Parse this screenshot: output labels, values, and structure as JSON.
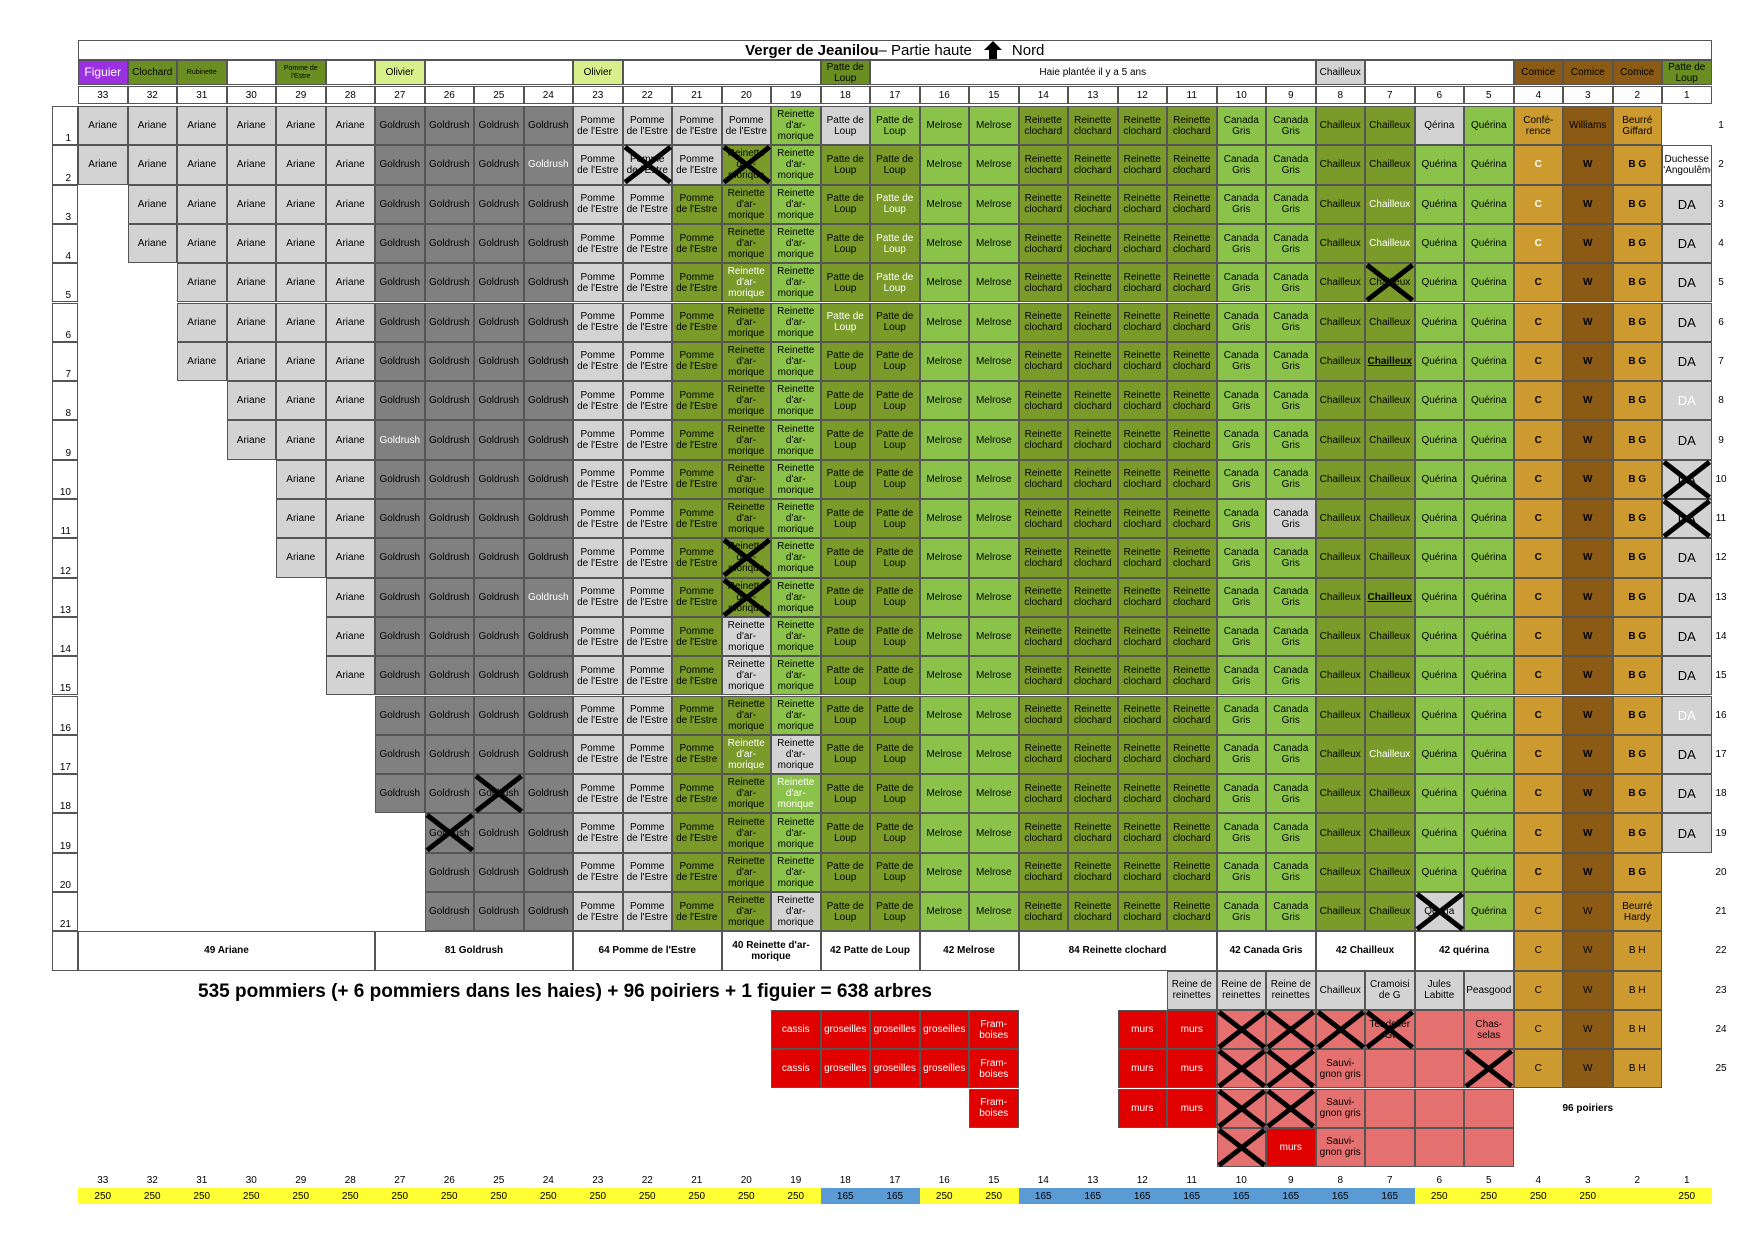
{
  "title": {
    "main": "Verger de Jeanilou",
    "sub": "– Partie haute",
    "north": "Nord",
    "north_icon": "north-arrow-icon"
  },
  "summary": "535 pommiers (+ 6 pommiers dans les haies)  + 96 poiriers + 1 figuier = 638 arbres",
  "colors": {
    "figuier": "#9b30e0",
    "olive": "#6b8e23",
    "lightolive": "#d7f08c",
    "grey": "#d3d3d3",
    "darkgrey": "#808080",
    "green": "#8bc34a",
    "olivegreen": "#7a9a2a",
    "gold": "#cc9a2e",
    "brown": "#8b5a14",
    "red": "#e00000",
    "pink": "#e47070",
    "yellow": "#ffff33",
    "blue": "#5b9bd5"
  },
  "col_numbers": [
    "33",
    "32",
    "31",
    "30",
    "29",
    "28",
    "27",
    "26",
    "25",
    "24",
    "23",
    "22",
    "21",
    "20",
    "19",
    "18",
    "17",
    "16",
    "15",
    "14",
    "13",
    "12",
    "11",
    "10",
    "9",
    "8",
    "7",
    "6",
    "5",
    "4",
    "3",
    "2",
    "1"
  ],
  "row_numbers": [
    "1",
    "2",
    "3",
    "4",
    "5",
    "6",
    "7",
    "8",
    "9",
    "10",
    "11",
    "12",
    "13",
    "14",
    "15",
    "16",
    "17",
    "18",
    "19",
    "20",
    "21"
  ],
  "right_row_numbers": [
    "1",
    "2",
    "3",
    "4",
    "5",
    "6",
    "7",
    "8",
    "9",
    "10",
    "11",
    "12",
    "13",
    "14",
    "15",
    "16",
    "17",
    "18",
    "19",
    "20",
    "21",
    "22",
    "23",
    "24",
    "25"
  ],
  "header_top": {
    "33": "Figuier",
    "32": "Clochard",
    "31": "Rubinette",
    "29": "Pomme de l'Estre",
    "27": "Olivier",
    "23": "Olivier",
    "18": "Patte de Loup",
    "hedge": "Haie plantée il y a 5 ans",
    "8": "Chailleux",
    "4": "Comice",
    "3": "Comice",
    "2": "Comice",
    "1": "Patte de Loup"
  },
  "v": {
    "ariane": "Ariane",
    "goldrush": "Goldrush",
    "pomme": "Pomme de l'Estre",
    "reinette_arm": "Reinette d'ar- morique",
    "patte": "Patte de Loup",
    "melrose": "Melrose",
    "reinette_clo": "Reinette clochard",
    "canada": "Canada Gris",
    "chailleux": "Chailleux",
    "querina": "Quérina",
    "qerina": "Qérina",
    "conference": "Confé- rence",
    "williams": "Williams",
    "beurre_giffard": "Beurré Giffard",
    "beurre_hardy": "Beurré Hardy",
    "duchesse": "Duchesse d'Angoulême",
    "c": "C",
    "w": "W",
    "bg": "B G",
    "bh": "B H",
    "da": "DA"
  },
  "totals": {
    "ariane": "49 Ariane",
    "goldrush": "81  Goldrush",
    "pomme": "64  Pomme de l'Estre",
    "reinette_arm": "40 Reinette d'ar- morique",
    "patte": "42 Patte de Loup",
    "melrose": "42 Melrose",
    "reinette_clo": "84 Reinette clochard",
    "canada": "42 Canada Gris",
    "chailleux": "42 Chailleux",
    "querina": "42 quérina"
  },
  "extra": {
    "reine": "Reine de reinettes",
    "cramoisi": "Cramoisi de G",
    "jules": "Jules Labitte",
    "peasgood": "Peasgood",
    "cassis": "cassis",
    "groseilles": "groseilles",
    "framboises": "Fram- boises",
    "murs": "murs",
    "tendelier": "Tendelier Gt",
    "chasselas": "Chas- selas",
    "sauvignon": "Sauvi- gnon gris",
    "poiriers": "96 poiriers"
  },
  "bottom_values": [
    "250",
    "250",
    "250",
    "250",
    "250",
    "250",
    "250",
    "250",
    "250",
    "250",
    "250",
    "250",
    "250",
    "250",
    "250",
    "165",
    "165",
    "250",
    "250",
    "165",
    "165",
    "165",
    "165",
    "165",
    "165",
    "165",
    "165",
    "250",
    "250",
    "250",
    "250",
    "",
    "250"
  ]
}
